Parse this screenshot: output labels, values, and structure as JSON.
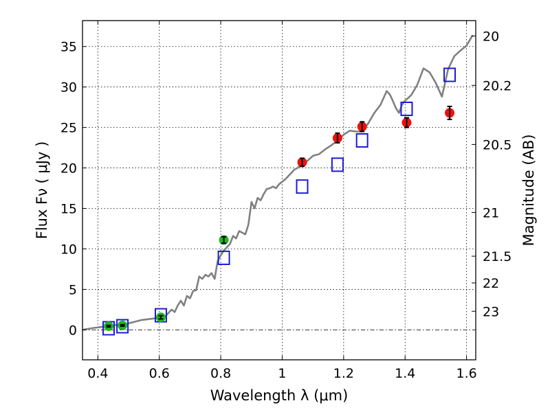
{
  "chart_data": {
    "type": "scatter",
    "xlabel": "Wavelength  λ (μm)",
    "ylabel": "Flux  Fν  ( μJy )",
    "y2label": "Magnitude (AB)",
    "xlim": [
      0.35,
      1.63
    ],
    "ylim": [
      -3.7,
      38.2
    ],
    "grid": true,
    "x_ticks": [
      0.4,
      0.6,
      0.8,
      1.0,
      1.2,
      1.4,
      1.6
    ],
    "x_tick_labels": [
      "0.4",
      "0.6",
      "0.8",
      "1",
      "1.2",
      "1.4",
      "1.6"
    ],
    "y_ticks": [
      0,
      5,
      10,
      15,
      20,
      25,
      30,
      35
    ],
    "y_tick_labels": [
      "0",
      "5",
      "10",
      "15",
      "20",
      "25",
      "30",
      "35"
    ],
    "y2_ticks": [
      {
        "label": "20",
        "flux": 36.3
      },
      {
        "label": "20.2",
        "flux": 30.2
      },
      {
        "label": "20.5",
        "flux": 22.9
      },
      {
        "label": "21",
        "flux": 14.5
      },
      {
        "label": "21.5",
        "flux": 9.1
      },
      {
        "label": "22",
        "flux": 5.8
      },
      {
        "label": "23",
        "flux": 2.3
      }
    ],
    "series": [
      {
        "name": "model spectrum",
        "style": "line",
        "color": "#808080",
        "x": [
          0.35,
          0.38,
          0.4,
          0.42,
          0.44,
          0.46,
          0.48,
          0.5,
          0.52,
          0.54,
          0.56,
          0.58,
          0.6,
          0.62,
          0.63,
          0.64,
          0.65,
          0.66,
          0.67,
          0.68,
          0.69,
          0.7,
          0.71,
          0.72,
          0.73,
          0.74,
          0.75,
          0.76,
          0.77,
          0.78,
          0.79,
          0.8,
          0.81,
          0.82,
          0.83,
          0.84,
          0.85,
          0.86,
          0.87,
          0.88,
          0.89,
          0.9,
          0.91,
          0.92,
          0.93,
          0.94,
          0.95,
          0.96,
          0.97,
          0.98,
          0.99,
          1.0,
          1.01,
          1.02,
          1.03,
          1.04,
          1.05,
          1.06,
          1.08,
          1.1,
          1.12,
          1.14,
          1.16,
          1.18,
          1.2,
          1.22,
          1.24,
          1.26,
          1.28,
          1.3,
          1.32,
          1.34,
          1.35,
          1.36,
          1.37,
          1.38,
          1.39,
          1.4,
          1.42,
          1.44,
          1.46,
          1.48,
          1.5,
          1.52,
          1.53,
          1.54,
          1.56,
          1.58,
          1.6,
          1.62
        ],
        "y": [
          0.0,
          0.2,
          0.3,
          0.4,
          0.5,
          0.6,
          0.7,
          0.8,
          1.0,
          1.2,
          1.3,
          1.4,
          1.5,
          1.7,
          2.1,
          2.5,
          2.2,
          3.0,
          3.6,
          3.0,
          4.2,
          3.9,
          4.8,
          4.9,
          6.6,
          6.3,
          6.8,
          6.6,
          7.0,
          6.3,
          8.5,
          9.2,
          9.8,
          10.2,
          10.6,
          11.6,
          11.3,
          12.2,
          12.0,
          11.8,
          13.0,
          15.8,
          15.0,
          16.3,
          16.0,
          16.8,
          17.4,
          17.5,
          17.7,
          17.5,
          18.0,
          18.3,
          18.6,
          19.0,
          19.4,
          19.8,
          20.0,
          20.4,
          20.8,
          21.5,
          21.7,
          22.3,
          22.8,
          23.4,
          24.1,
          24.6,
          24.5,
          24.5,
          25.5,
          26.8,
          27.8,
          29.5,
          29.1,
          28.3,
          27.4,
          26.8,
          27.8,
          28.3,
          29.0,
          30.3,
          32.3,
          31.8,
          30.5,
          28.8,
          30.5,
          32.2,
          33.8,
          34.5,
          35.1,
          36.4
        ]
      },
      {
        "name": "green photometry",
        "style": "marker-circle",
        "color": "#22b522",
        "x": [
          0.435,
          0.48,
          0.605,
          0.81
        ],
        "y": [
          0.45,
          0.55,
          1.55,
          11.1
        ],
        "err": [
          0.1,
          0.1,
          0.2,
          0.4
        ]
      },
      {
        "name": "red photometry",
        "style": "marker-circle",
        "color": "#ee1010",
        "x": [
          1.065,
          1.18,
          1.26,
          1.405,
          1.545
        ],
        "y": [
          20.7,
          23.7,
          25.1,
          25.6,
          26.8
        ],
        "err": [
          0.5,
          0.6,
          0.6,
          0.6,
          0.8
        ]
      },
      {
        "name": "model photometry",
        "style": "marker-square",
        "color": "#1a1ad4",
        "x": [
          0.435,
          0.48,
          0.605,
          0.81,
          1.065,
          1.18,
          1.26,
          1.405,
          1.545
        ],
        "y": [
          0.2,
          0.45,
          1.8,
          8.9,
          17.7,
          20.4,
          23.4,
          27.3,
          31.5
        ]
      }
    ]
  }
}
